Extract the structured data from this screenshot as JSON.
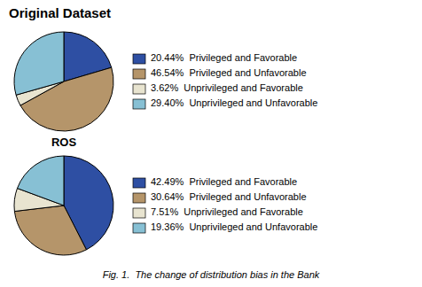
{
  "chart_data": [
    {
      "type": "pie",
      "title": "Original Dataset",
      "annotations": [
        "ROS"
      ],
      "categories": [
        "20.44%  Privileged and Favorable",
        "46.54%  Privileged and Unfavorable",
        "3.62%  Unprivileged and Favorable",
        "29.40%  Unprivileged and Unfavorable"
      ],
      "values": [
        20.44,
        46.54,
        3.62,
        29.4
      ],
      "colors": [
        "#2e4fa3",
        "#b5956a",
        "#e8e4d0",
        "#87c0d4"
      ],
      "legend": "right"
    },
    {
      "type": "pie",
      "annotations": [
        "Fig. 1.  The change of distribution bias in the Bank"
      ],
      "categories": [
        "42.49%  Privileged and Favorable",
        "30.64%  Privileged and Unfavorable",
        "7.51%  Unprivileged and Favorable",
        "19.36%  Unprivileged and Unfavorable"
      ],
      "values": [
        42.49,
        30.64,
        7.51,
        19.36
      ],
      "colors": [
        "#2e4fa3",
        "#b5956a",
        "#e8e4d0",
        "#87c0d4"
      ],
      "legend": "right"
    }
  ]
}
